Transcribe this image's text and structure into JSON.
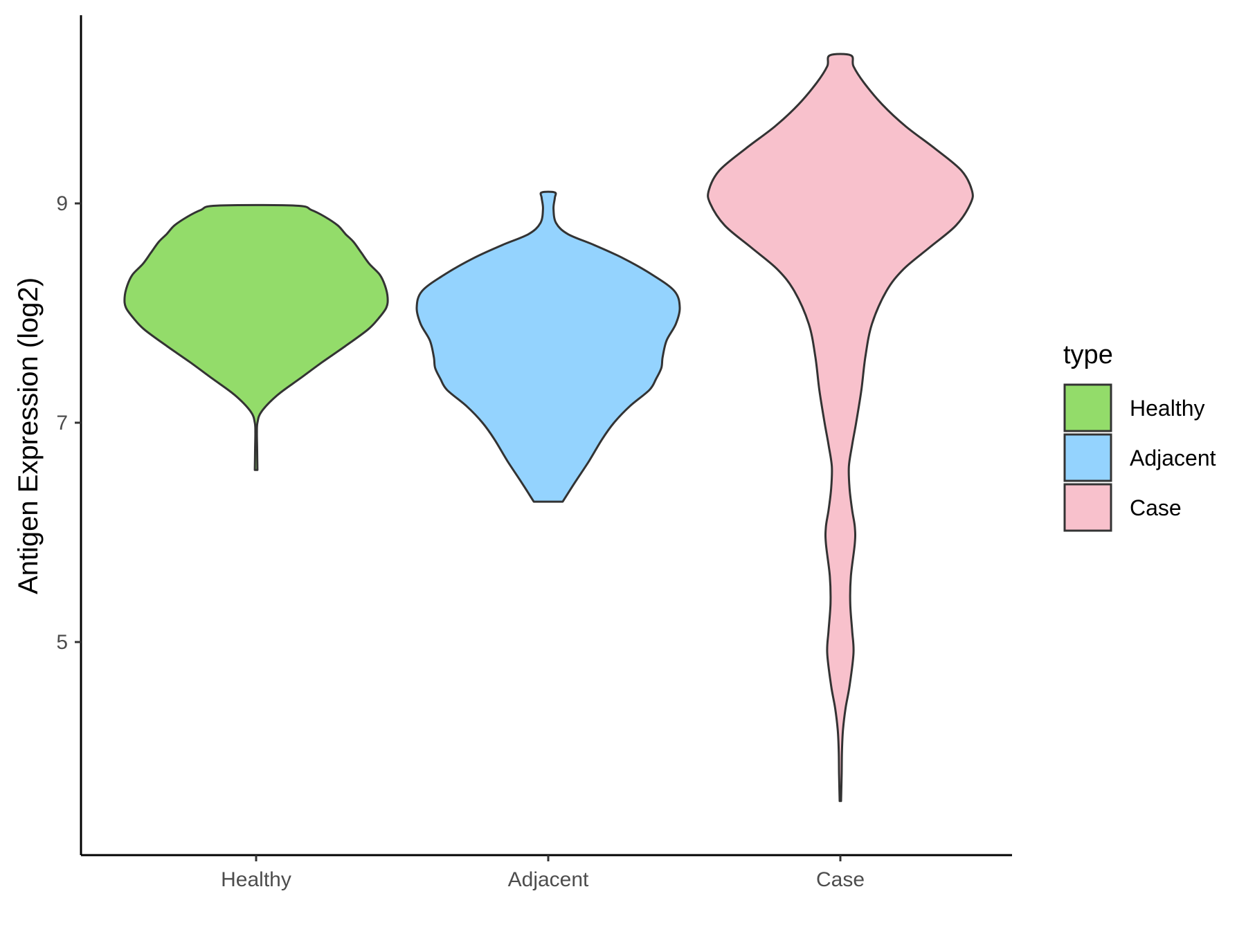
{
  "chart_data": {
    "type": "violin",
    "ylabel": "Antigen Expression (log2)",
    "xlabel": "",
    "ylim": [
      3.1,
      10.75
    ],
    "y_ticks": [
      5,
      7,
      9
    ],
    "categories": [
      "Healthy",
      "Adjacent",
      "Case"
    ],
    "legend": {
      "title": "type",
      "position": "right",
      "entries": [
        "Healthy",
        "Adjacent",
        "Case"
      ]
    },
    "grid": false,
    "series": [
      {
        "name": "Healthy",
        "color": "#93dc6a",
        "min": 6.57,
        "max": 8.98,
        "density": [
          [
            6.57,
            0.01
          ],
          [
            6.75,
            0.008
          ],
          [
            6.9,
            0.006
          ],
          [
            7.0,
            0.01
          ],
          [
            7.1,
            0.04
          ],
          [
            7.25,
            0.16
          ],
          [
            7.4,
            0.33
          ],
          [
            7.55,
            0.5
          ],
          [
            7.7,
            0.68
          ],
          [
            7.85,
            0.85
          ],
          [
            7.95,
            0.93
          ],
          [
            8.05,
            0.99
          ],
          [
            8.14,
            1.0
          ],
          [
            8.25,
            0.98
          ],
          [
            8.35,
            0.94
          ],
          [
            8.45,
            0.86
          ],
          [
            8.55,
            0.8
          ],
          [
            8.65,
            0.74
          ],
          [
            8.72,
            0.68
          ],
          [
            8.8,
            0.62
          ],
          [
            8.88,
            0.52
          ],
          [
            8.94,
            0.42
          ],
          [
            8.98,
            0.3
          ]
        ]
      },
      {
        "name": "Adjacent",
        "color": "#94d3fe",
        "min": 6.28,
        "max": 9.1,
        "density": [
          [
            6.28,
            0.11
          ],
          [
            6.45,
            0.2
          ],
          [
            6.65,
            0.31
          ],
          [
            6.85,
            0.41
          ],
          [
            7.0,
            0.5
          ],
          [
            7.15,
            0.62
          ],
          [
            7.3,
            0.77
          ],
          [
            7.4,
            0.82
          ],
          [
            7.5,
            0.86
          ],
          [
            7.6,
            0.87
          ],
          [
            7.75,
            0.9
          ],
          [
            7.9,
            0.97
          ],
          [
            8.05,
            1.0
          ],
          [
            8.2,
            0.96
          ],
          [
            8.35,
            0.79
          ],
          [
            8.5,
            0.57
          ],
          [
            8.62,
            0.35
          ],
          [
            8.72,
            0.15
          ],
          [
            8.82,
            0.06
          ],
          [
            8.95,
            0.04
          ],
          [
            9.05,
            0.05
          ],
          [
            9.1,
            0.05
          ]
        ]
      },
      {
        "name": "Case",
        "color": "#f8c1cc",
        "min": 3.55,
        "max": 10.35,
        "density": [
          [
            3.55,
            0.005
          ],
          [
            3.8,
            0.01
          ],
          [
            4.0,
            0.012
          ],
          [
            4.2,
            0.02
          ],
          [
            4.4,
            0.04
          ],
          [
            4.6,
            0.07
          ],
          [
            4.9,
            0.1
          ],
          [
            5.1,
            0.09
          ],
          [
            5.35,
            0.075
          ],
          [
            5.6,
            0.08
          ],
          [
            5.9,
            0.11
          ],
          [
            6.05,
            0.11
          ],
          [
            6.2,
            0.09
          ],
          [
            6.4,
            0.07
          ],
          [
            6.6,
            0.065
          ],
          [
            6.8,
            0.09
          ],
          [
            7.0,
            0.12
          ],
          [
            7.3,
            0.16
          ],
          [
            7.6,
            0.19
          ],
          [
            7.9,
            0.24
          ],
          [
            8.2,
            0.35
          ],
          [
            8.4,
            0.48
          ],
          [
            8.6,
            0.68
          ],
          [
            8.8,
            0.88
          ],
          [
            9.0,
            0.99
          ],
          [
            9.12,
            1.0
          ],
          [
            9.3,
            0.92
          ],
          [
            9.5,
            0.72
          ],
          [
            9.7,
            0.5
          ],
          [
            9.9,
            0.32
          ],
          [
            10.1,
            0.18
          ],
          [
            10.25,
            0.1
          ],
          [
            10.35,
            0.08
          ]
        ]
      }
    ]
  }
}
